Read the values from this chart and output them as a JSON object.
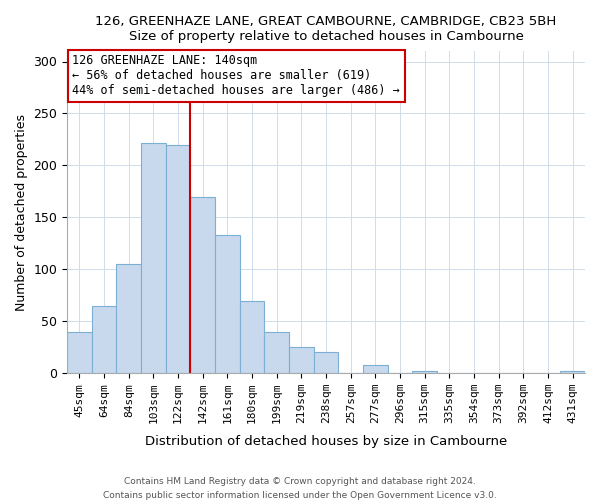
{
  "title1": "126, GREENHAZE LANE, GREAT CAMBOURNE, CAMBRIDGE, CB23 5BH",
  "title2": "Size of property relative to detached houses in Cambourne",
  "xlabel": "Distribution of detached houses by size in Cambourne",
  "ylabel": "Number of detached properties",
  "categories": [
    "45sqm",
    "64sqm",
    "84sqm",
    "103sqm",
    "122sqm",
    "142sqm",
    "161sqm",
    "180sqm",
    "199sqm",
    "219sqm",
    "238sqm",
    "257sqm",
    "277sqm",
    "296sqm",
    "315sqm",
    "335sqm",
    "354sqm",
    "373sqm",
    "392sqm",
    "412sqm",
    "431sqm"
  ],
  "values": [
    40,
    65,
    105,
    222,
    220,
    170,
    133,
    69,
    40,
    25,
    20,
    0,
    8,
    0,
    2,
    0,
    0,
    0,
    0,
    0,
    2
  ],
  "bar_color": "#c8d9ed",
  "bar_edge_color": "#7bafd4",
  "vline_index": 5,
  "annotation_title": "126 GREENHAZE LANE: 140sqm",
  "annotation_line1": "← 56% of detached houses are smaller (619)",
  "annotation_line2": "44% of semi-detached houses are larger (486) →",
  "annotation_box_color": "#ffffff",
  "annotation_box_edge": "#cc0000",
  "vline_color": "#cc0000",
  "ylim": [
    0,
    310
  ],
  "yticks": [
    0,
    50,
    100,
    150,
    200,
    250,
    300
  ],
  "footer1": "Contains HM Land Registry data © Crown copyright and database right 2024.",
  "footer2": "Contains public sector information licensed under the Open Government Licence v3.0.",
  "background_color": "#ffffff",
  "plot_background": "#ffffff",
  "grid_color": "#d0dce8"
}
